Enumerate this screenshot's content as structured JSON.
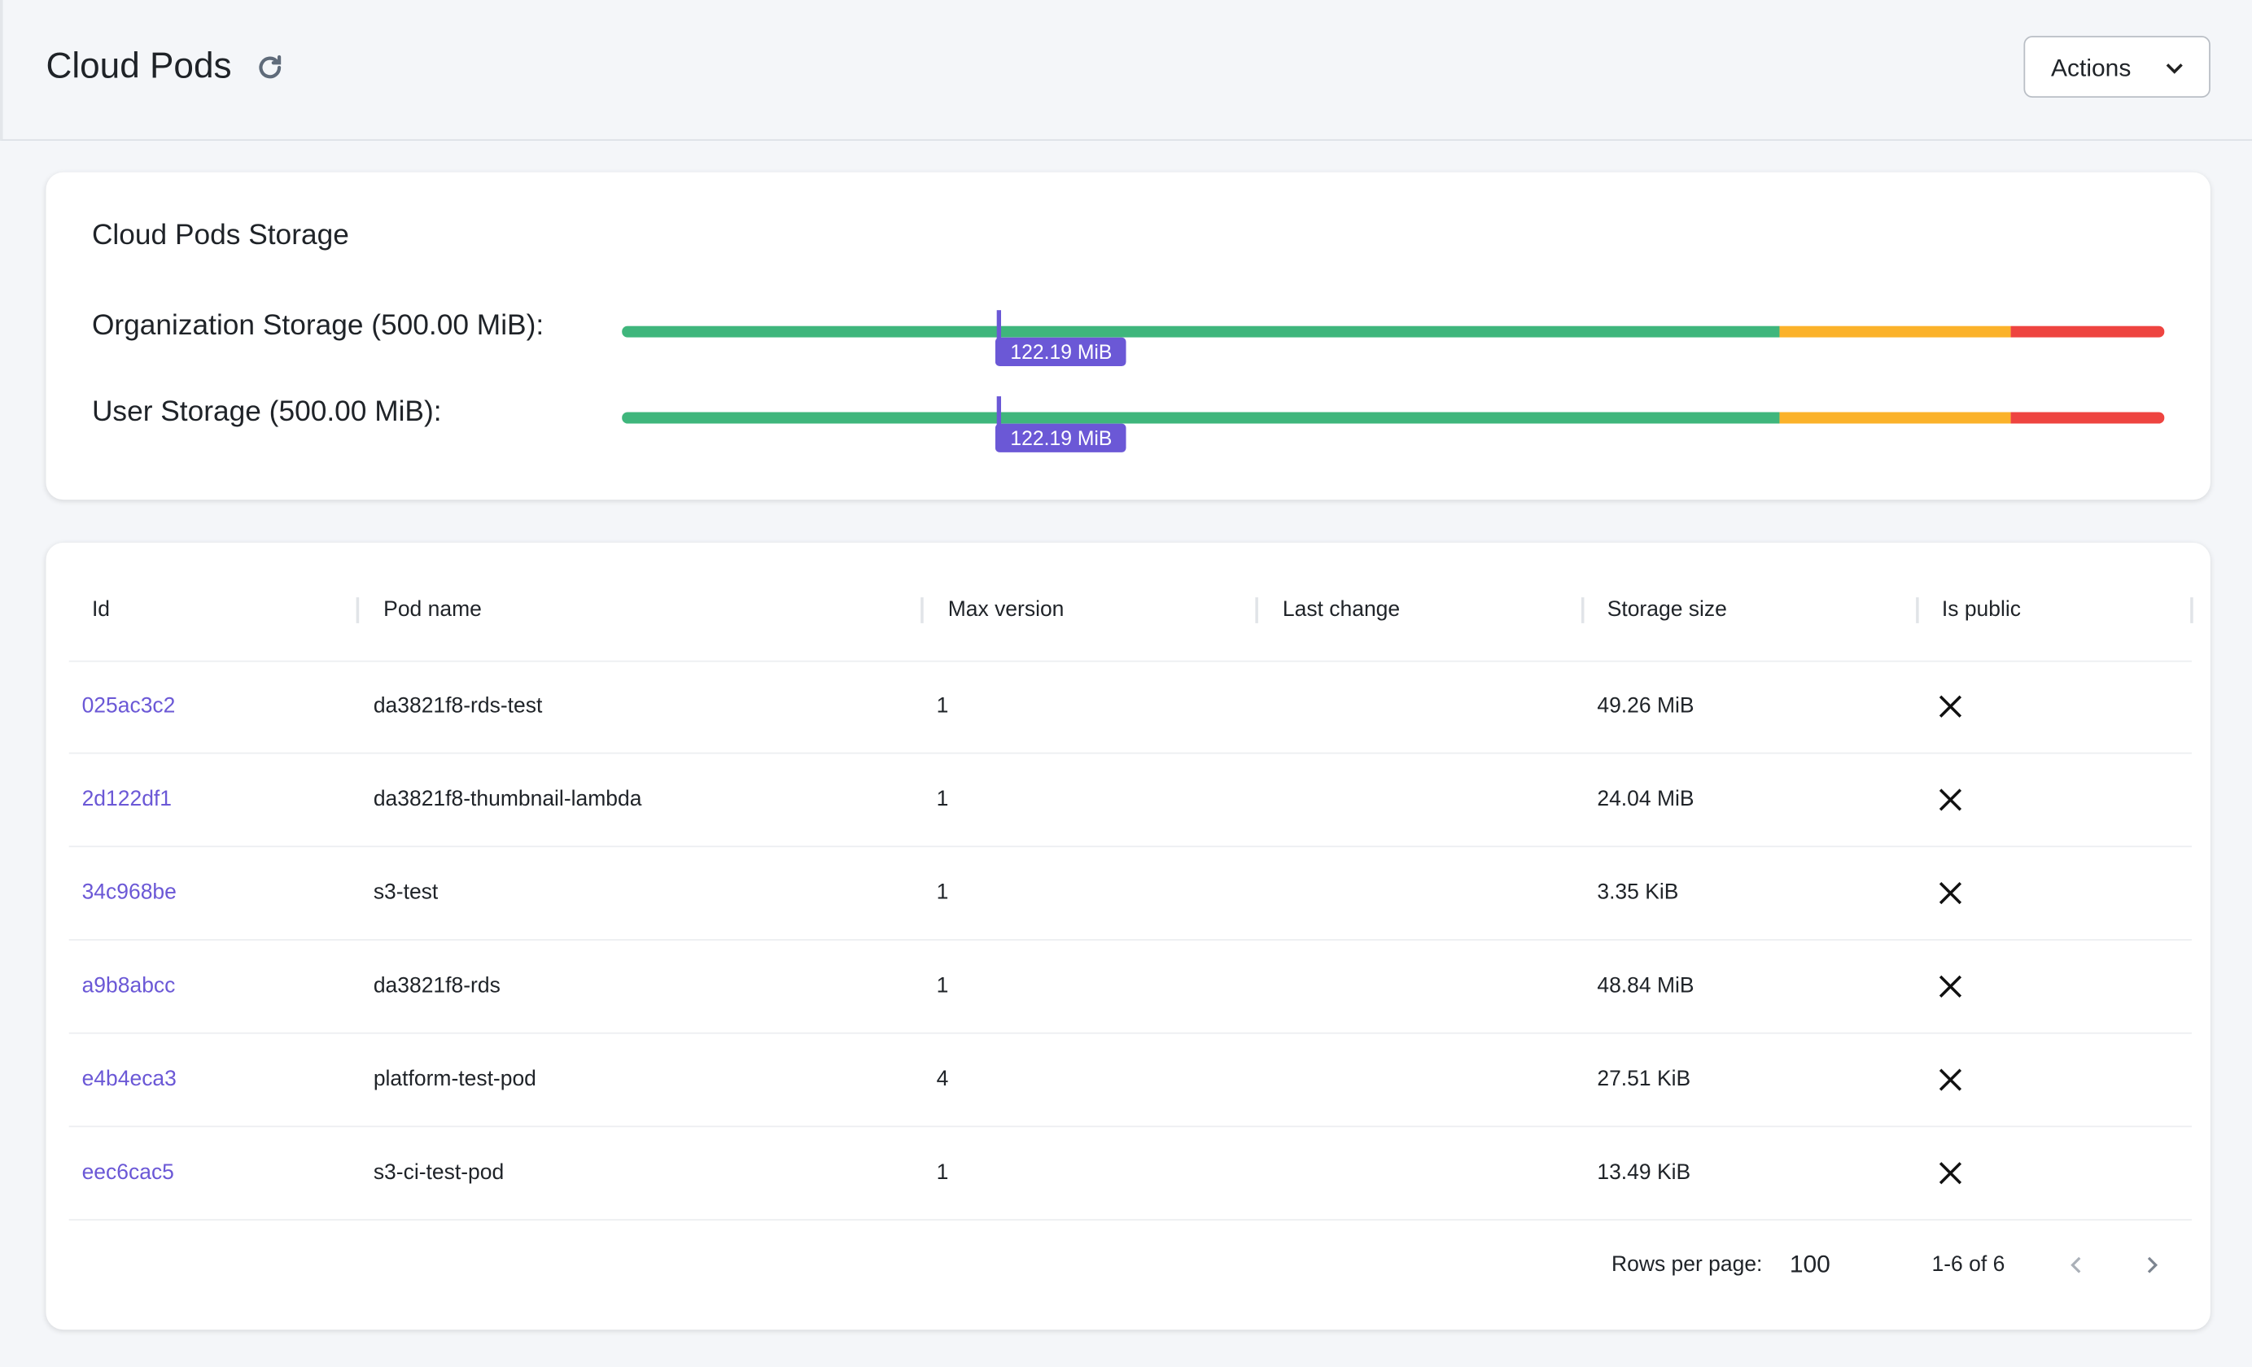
{
  "header": {
    "title": "Cloud Pods",
    "actions": "Actions"
  },
  "storage": {
    "title": "Cloud Pods Storage",
    "rows": [
      {
        "label": "Organization Storage (500.00 MiB):",
        "value": 122.19,
        "value_label": "122.19 MiB",
        "max": 500
      },
      {
        "label": "User Storage (500.00 MiB):",
        "value": 122.19,
        "value_label": "122.19 MiB",
        "max": 500
      }
    ]
  },
  "table": {
    "columns": [
      "Id",
      "Pod name",
      "Max version",
      "Last change",
      "Storage size",
      "Is public"
    ],
    "rows": [
      {
        "id": "025ac3c2",
        "pod_name": "da3821f8-rds-test",
        "max_version": 1,
        "storage_size": "49.26 MiB"
      },
      {
        "id": "2d122df1",
        "pod_name": "da3821f8-thumbnail-lambda",
        "max_version": 1,
        "storage_size": "24.04 MiB"
      },
      {
        "id": "34c968be",
        "pod_name": "s3-test",
        "max_version": 1,
        "storage_size": "3.35 KiB"
      },
      {
        "id": "a9b8abcc",
        "pod_name": "da3821f8-rds",
        "max_version": 1,
        "storage_size": "48.84 MiB"
      },
      {
        "id": "e4b4eca3",
        "pod_name": "platform-test-pod",
        "max_version": 4,
        "storage_size": "27.51 KiB"
      },
      {
        "id": "eec6cac5",
        "pod_name": "s3-ci-test-pod",
        "max_version": 1,
        "storage_size": "13.49 KiB"
      }
    ],
    "footer": {
      "rows_per_page_label": "Rows per page:",
      "rows_per_page": "100",
      "range": "1-6 of 6"
    }
  }
}
